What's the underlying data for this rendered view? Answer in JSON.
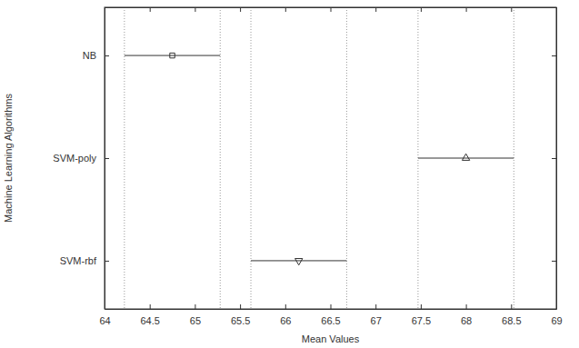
{
  "chart_data": {
    "type": "interval",
    "orientation": "horizontal",
    "x_label": "Mean Values",
    "y_label": "Machine Learning Algorithms",
    "categories": [
      "NB",
      "SVM-poly",
      "SVM-rbf"
    ],
    "values": [
      64.75,
      68.0,
      66.15
    ],
    "error": [
      0.53,
      0.53,
      0.53
    ],
    "xlim": [
      64,
      69
    ],
    "xticks": [
      64,
      64.5,
      65,
      65.5,
      66,
      66.5,
      67,
      67.5,
      68,
      68.5,
      69
    ],
    "grid": true
  }
}
